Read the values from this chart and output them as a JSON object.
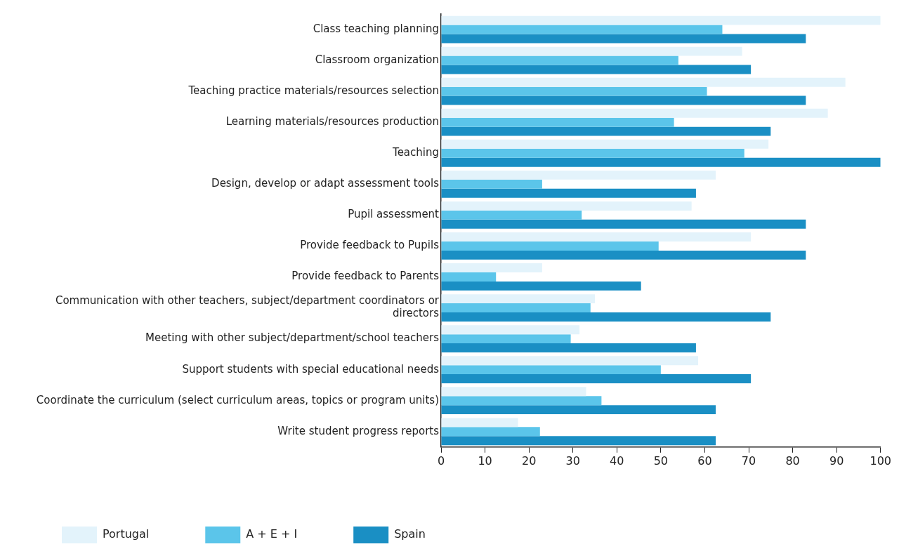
{
  "chart_data": {
    "type": "bar",
    "orientation": "horizontal",
    "categories": [
      "Class teaching planning",
      "Classroom organization",
      "Teaching practice materials/resources selection",
      "Learning materials/resources production",
      "Teaching",
      "Design, develop or adapt assessment tools",
      "Pupil assessment",
      "Provide feedback to Pupils",
      "Provide feedback to Parents",
      "Communication with other teachers, subject/department coordinators or directors",
      "Meeting with other subject/department/school teachers",
      "Support students with special educational needs",
      "Coordinate the curriculum (select curriculum areas, topics or program units)",
      "Write student progress reports"
    ],
    "series": [
      {
        "name": "Portugal",
        "color": "#e3f3fb",
        "values": [
          100,
          68.5,
          92,
          88,
          74.5,
          62.5,
          57,
          70.5,
          23,
          35,
          31.5,
          58.5,
          33,
          17.5
        ]
      },
      {
        "name": "A + E + I",
        "color": "#5bc5ea",
        "values": [
          64,
          54,
          60.5,
          53,
          69,
          23,
          32,
          49.5,
          12.5,
          34,
          29.5,
          50,
          36.5,
          22.5
        ]
      },
      {
        "name": "Spain",
        "color": "#1a8fc4",
        "values": [
          83,
          70.5,
          83,
          75,
          100,
          58,
          83,
          83,
          45.5,
          75,
          58,
          70.5,
          62.5,
          62.5
        ]
      }
    ],
    "xlim": [
      0,
      100
    ],
    "xticks": [
      0,
      10,
      20,
      30,
      40,
      50,
      60,
      70,
      80,
      90,
      100
    ],
    "grid": false,
    "legend": "bottom"
  }
}
